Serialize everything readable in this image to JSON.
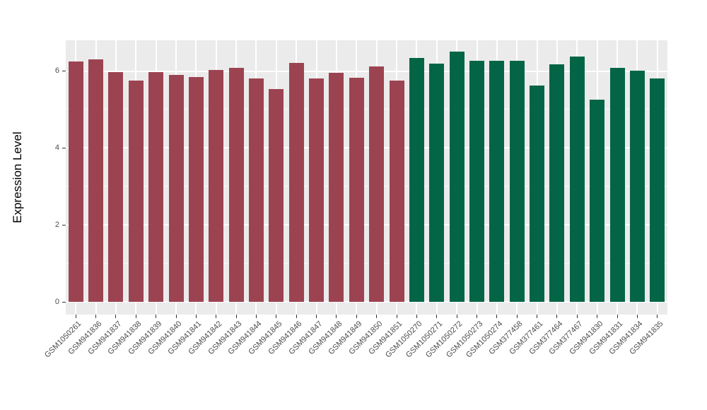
{
  "chart_data": {
    "type": "bar",
    "title": "",
    "xlabel": "",
    "ylabel": "Expression Level",
    "ylim": [
      0,
      6.8
    ],
    "yticks": [
      0,
      2,
      4,
      6
    ],
    "minor_yticks": [
      1,
      3,
      5
    ],
    "grid": true,
    "legend_position": "none",
    "categories": [
      "GSM1050261",
      "GSM941836",
      "GSM941837",
      "GSM941838",
      "GSM941839",
      "GSM941840",
      "GSM941841",
      "GSM941842",
      "GSM941843",
      "GSM941844",
      "GSM941845",
      "GSM941846",
      "GSM941847",
      "GSM941848",
      "GSM941849",
      "GSM941850",
      "GSM941851",
      "GSM1050270",
      "GSM1050271",
      "GSM1050272",
      "GSM1050273",
      "GSM1050274",
      "GSM377458",
      "GSM377461",
      "GSM377464",
      "GSM377467",
      "GSM941830",
      "GSM941831",
      "GSM941834",
      "GSM941835"
    ],
    "values": [
      6.25,
      6.3,
      5.98,
      5.76,
      5.98,
      5.9,
      5.84,
      6.02,
      6.08,
      5.8,
      5.53,
      6.22,
      5.8,
      5.96,
      5.83,
      6.12,
      5.76,
      6.34,
      6.19,
      6.51,
      6.26,
      6.27,
      6.27,
      5.62,
      6.18,
      6.38,
      5.26,
      6.08,
      6.01,
      5.8
    ],
    "bar_groups": [
      "red",
      "red",
      "red",
      "red",
      "red",
      "red",
      "red",
      "red",
      "red",
      "red",
      "red",
      "red",
      "red",
      "red",
      "red",
      "red",
      "red",
      "green",
      "green",
      "green",
      "green",
      "green",
      "green",
      "green",
      "green",
      "green",
      "green",
      "green",
      "green",
      "green"
    ],
    "palette": {
      "red": "#9c4351",
      "green": "#046546"
    }
  },
  "style": {
    "panel_bg": "#ebebeb",
    "grid_major_color": "#ffffff",
    "grid_minor_color": "#ffffff",
    "axis_text_color": "#4d4d4d",
    "tick_mark_color": "#333333",
    "outer_bg": "#ffffff"
  }
}
